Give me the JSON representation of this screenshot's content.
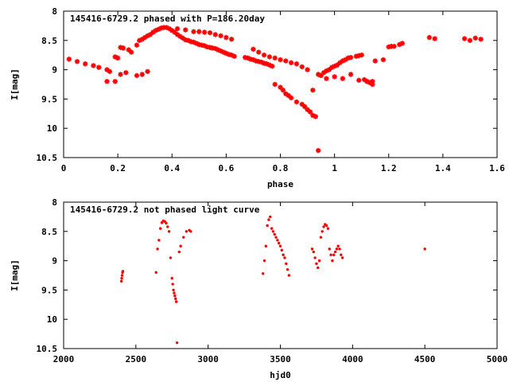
{
  "chart_data": [
    {
      "type": "scatter",
      "title": "145416-6729.2 phased with P=186.20day",
      "xlabel": "phase",
      "ylabel": "I[mag]",
      "xlim": [
        0,
        1.6
      ],
      "ylim": [
        10.5,
        8
      ],
      "y_inverted": true,
      "grid": false,
      "x_ticks": [
        "0",
        "0.2",
        "0.4",
        "0.6",
        "0.8",
        "1",
        "1.2",
        "1.4",
        "1.6"
      ],
      "y_ticks": [
        "8",
        "8.5",
        "9",
        "9.5",
        "10",
        "10.5"
      ],
      "marker": "star",
      "color": "#ff0000",
      "series": [
        {
          "x": [
            0.02,
            0.05,
            0.08,
            0.11,
            0.13,
            0.16,
            0.17,
            0.19,
            0.2,
            0.21,
            0.22,
            0.24,
            0.25,
            0.27,
            0.28,
            0.29,
            0.3,
            0.31,
            0.32,
            0.33,
            0.34,
            0.35,
            0.36,
            0.37,
            0.38,
            0.39,
            0.4,
            0.41,
            0.42,
            0.43,
            0.44,
            0.45,
            0.46,
            0.47,
            0.48,
            0.49,
            0.5,
            0.51,
            0.52,
            0.53,
            0.54,
            0.55,
            0.56,
            0.57,
            0.58,
            0.59,
            0.6,
            0.61,
            0.62,
            0.63,
            0.67,
            0.68,
            0.69,
            0.7,
            0.71,
            0.72,
            0.73,
            0.74,
            0.75,
            0.76,
            0.77,
            0.78,
            0.8,
            0.81,
            0.82,
            0.83,
            0.84,
            0.86,
            0.88,
            0.89,
            0.9,
            0.91,
            0.92,
            0.93,
            0.94,
            0.95,
            0.96,
            0.97,
            0.98,
            0.99,
            1.0,
            1.01,
            1.02,
            1.03,
            1.04,
            1.05,
            1.06,
            1.08,
            1.09,
            1.1,
            1.11,
            1.12,
            1.13,
            1.14,
            1.15,
            1.18,
            1.2,
            1.21,
            1.22,
            1.24,
            1.25,
            1.35,
            1.37,
            1.48,
            1.5,
            1.52,
            1.54
          ],
          "y": [
            8.82,
            8.86,
            8.9,
            8.93,
            8.96,
            9.0,
            9.03,
            8.78,
            8.8,
            8.62,
            8.63,
            8.66,
            8.7,
            8.58,
            8.5,
            8.48,
            8.45,
            8.42,
            8.4,
            8.36,
            8.33,
            8.31,
            8.29,
            8.28,
            8.28,
            8.3,
            8.33,
            8.36,
            8.4,
            8.43,
            8.46,
            8.49,
            8.5,
            8.52,
            8.53,
            8.55,
            8.57,
            8.58,
            8.59,
            8.61,
            8.62,
            8.63,
            8.64,
            8.66,
            8.68,
            8.7,
            8.72,
            8.74,
            8.75,
            8.77,
            8.79,
            8.8,
            8.82,
            8.83,
            8.85,
            8.86,
            8.87,
            8.89,
            8.9,
            8.92,
            8.94,
            9.25,
            9.3,
            9.35,
            9.41,
            9.44,
            9.48,
            9.55,
            9.59,
            9.63,
            9.68,
            9.72,
            9.78,
            9.8,
            10.38,
            9.1,
            9.05,
            9.02,
            9.0,
            8.96,
            8.94,
            8.92,
            8.88,
            8.85,
            8.83,
            8.8,
            8.79,
            8.77,
            8.76,
            8.75,
            9.17,
            9.2,
            9.22,
            9.25,
            8.85,
            8.83,
            8.61,
            8.6,
            8.6,
            8.57,
            8.55,
            8.45,
            8.47,
            8.47,
            8.5,
            8.46,
            8.48
          ]
        },
        {
          "x": [
            0.16,
            0.19,
            0.21,
            0.23,
            0.27,
            0.29,
            0.31,
            0.42,
            0.45,
            0.48,
            0.5,
            0.52,
            0.54,
            0.56,
            0.58,
            0.6,
            0.62,
            0.7,
            0.72,
            0.74,
            0.76,
            0.78,
            0.8,
            0.82,
            0.84,
            0.86,
            0.88,
            0.9,
            0.92,
            0.94,
            0.97,
            1.0,
            1.03,
            1.06,
            1.09,
            1.12,
            1.14
          ],
          "y": [
            9.2,
            9.2,
            9.08,
            9.05,
            9.1,
            9.08,
            9.03,
            8.3,
            8.32,
            8.35,
            8.35,
            8.36,
            8.37,
            8.4,
            8.42,
            8.45,
            8.48,
            8.65,
            8.7,
            8.75,
            8.78,
            8.8,
            8.83,
            8.85,
            8.88,
            8.9,
            8.95,
            9.0,
            9.35,
            9.08,
            9.15,
            9.12,
            9.15,
            9.08,
            9.18,
            9.2,
            9.2
          ]
        }
      ]
    },
    {
      "type": "scatter",
      "title": "145416-6729.2 not phased light curve",
      "xlabel": "hjd0",
      "ylabel": "I[mag]",
      "xlim": [
        2000,
        5000
      ],
      "ylim": [
        10.5,
        8
      ],
      "y_inverted": true,
      "grid": false,
      "x_ticks": [
        "2000",
        "2500",
        "3000",
        "3500",
        "4000",
        "4500",
        "5000"
      ],
      "y_ticks": [
        "8",
        "8.5",
        "9",
        "9.5",
        "10",
        "10.5"
      ],
      "marker": "dot",
      "color": "#ff0000",
      "series": [
        {
          "x": [
            2400,
            2402,
            2405,
            2408,
            2410,
            2640,
            2650,
            2660,
            2670,
            2680,
            2690,
            2700,
            2710,
            2720,
            2730,
            2740,
            2750,
            2755,
            2760,
            2765,
            2770,
            2775,
            2780,
            2785,
            2800,
            2810,
            2830,
            2850,
            2870,
            2880,
            3380,
            3390,
            3400,
            3410,
            3420,
            3430,
            3440,
            3450,
            3460,
            3470,
            3480,
            3490,
            3500,
            3510,
            3520,
            3530,
            3540,
            3550,
            3560,
            3720,
            3730,
            3740,
            3750,
            3760,
            3770,
            3780,
            3790,
            3800,
            3810,
            3820,
            3830,
            3840,
            3850,
            3860,
            3870,
            3880,
            3890,
            3900,
            3910,
            3920,
            3930,
            4500
          ],
          "y": [
            9.35,
            9.3,
            9.25,
            9.2,
            9.18,
            9.2,
            8.8,
            8.65,
            8.45,
            8.35,
            8.32,
            8.33,
            8.36,
            8.42,
            8.5,
            8.95,
            9.3,
            9.4,
            9.5,
            9.55,
            9.6,
            9.65,
            9.7,
            10.4,
            8.85,
            8.75,
            8.6,
            8.5,
            8.48,
            8.5,
            9.22,
            9.0,
            8.75,
            8.4,
            8.3,
            8.25,
            8.45,
            8.5,
            8.55,
            8.6,
            8.65,
            8.7,
            8.75,
            8.82,
            8.9,
            8.95,
            9.05,
            9.15,
            9.25,
            8.8,
            8.85,
            8.95,
            9.05,
            9.12,
            9.0,
            8.6,
            8.5,
            8.42,
            8.38,
            8.4,
            8.45,
            8.8,
            8.9,
            9.0,
            8.9,
            8.85,
            8.8,
            8.75,
            8.8,
            8.9,
            8.95,
            8.8
          ]
        }
      ]
    }
  ]
}
